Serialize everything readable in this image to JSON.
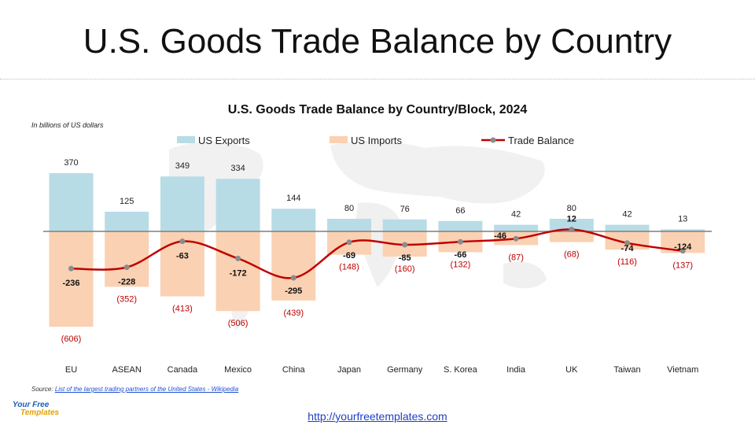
{
  "slide": {
    "title": "U.S. Goods Trade Balance by Country",
    "source_label": "Source:",
    "source_link": "List of the largest trading partners of the United States - Wikipedia",
    "logo_line1": "Your Free",
    "logo_line2": "Templates",
    "site_url": "http://yourfreetemplates.com"
  },
  "colors": {
    "exports": "#b8dce6",
    "imports": "#fad1b2",
    "balance": "#c00000",
    "marker": "#8c8c8c",
    "axis": "#7f7f7f",
    "import_label": "#c00000"
  },
  "chart_data": {
    "type": "bar",
    "title": "U.S. Goods Trade Balance by Country/Block, 2024",
    "unit_note": "In billions of US dollars",
    "categories": [
      "EU",
      "ASEAN",
      "Canada",
      "Mexico",
      "China",
      "Japan",
      "Germany",
      "S. Korea",
      "India",
      "UK",
      "Taiwan",
      "Vietnam"
    ],
    "series": [
      {
        "name": "US Exports",
        "kind": "bar",
        "values": [
          370,
          125,
          349,
          334,
          144,
          80,
          76,
          66,
          42,
          80,
          42,
          13
        ],
        "labels": [
          "370",
          "125",
          "349",
          "334",
          "144",
          "80",
          "76",
          "66",
          "42",
          "80",
          "42",
          "13"
        ]
      },
      {
        "name": "US Imports",
        "kind": "bar",
        "values": [
          -606,
          -352,
          -413,
          -506,
          -439,
          -148,
          -160,
          -132,
          -87,
          -68,
          -116,
          -137
        ],
        "labels": [
          "(606)",
          "(352)",
          "(413)",
          "(506)",
          "(439)",
          "(148)",
          "(160)",
          "(132)",
          "(87)",
          "(68)",
          "(116)",
          "(137)"
        ]
      },
      {
        "name": "Trade Balance",
        "kind": "line",
        "values": [
          -236,
          -228,
          -63,
          -172,
          -295,
          -69,
          -85,
          -66,
          -46,
          12,
          -74,
          -124
        ],
        "labels": [
          "-236",
          "-228",
          "-63",
          "-172",
          "-295",
          "-69",
          "-85",
          "-66",
          "-46",
          "12",
          "-74",
          "-124"
        ]
      }
    ],
    "ylim": [
      -650,
      420
    ],
    "grid": false,
    "legend_position": "top"
  }
}
